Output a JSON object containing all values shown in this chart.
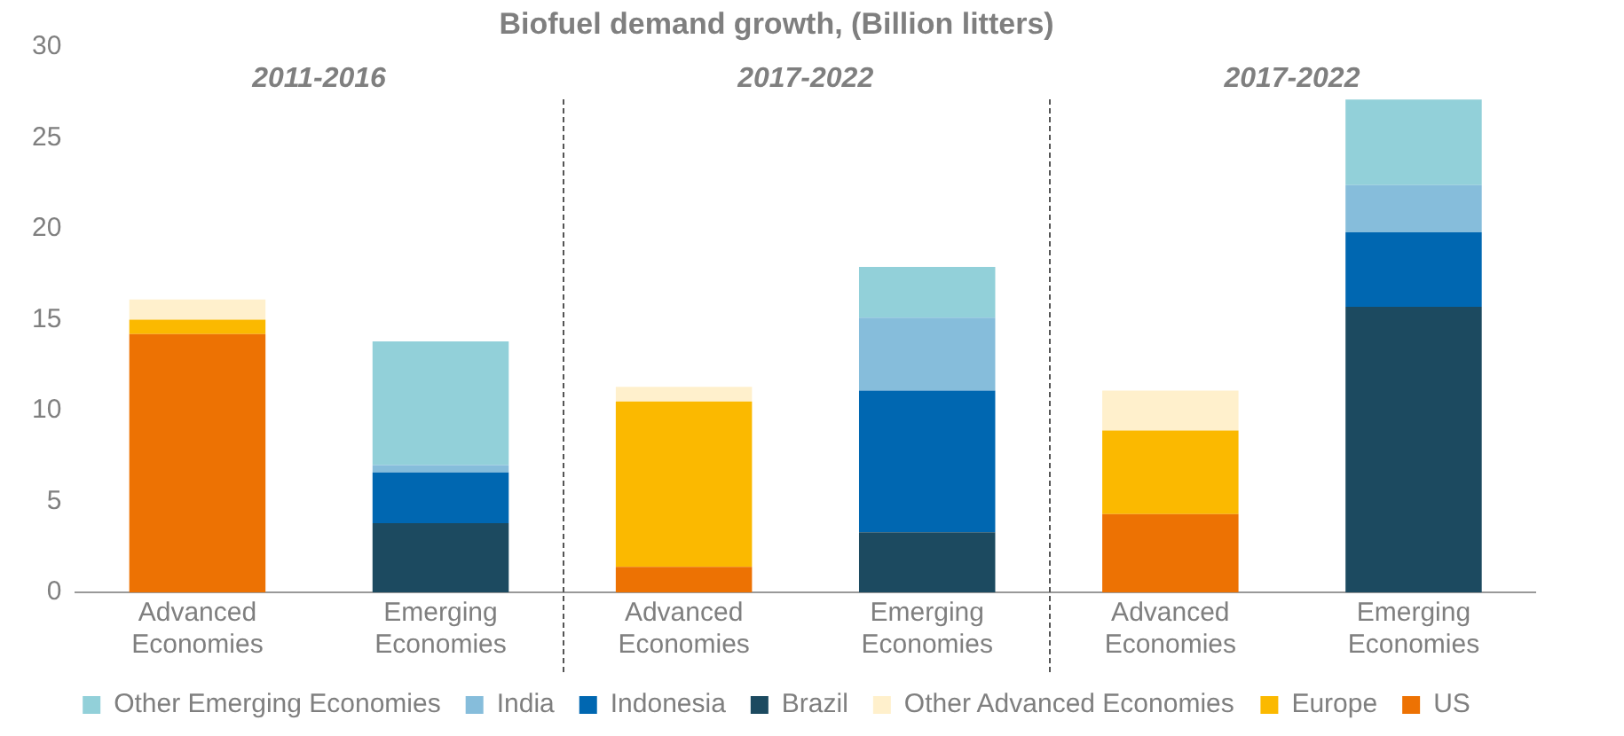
{
  "chart_data": {
    "type": "bar",
    "title": "Biofuel demand growth, (Billion litters)",
    "stacked": true,
    "legend": "bottom",
    "grid": false,
    "categories": [
      "Advanced Economies",
      "Emerging Economies",
      "Advanced Economies",
      "Emerging Economies",
      "Advanced Economies",
      "Emerging Economies"
    ],
    "annotations": [
      "2011-2016",
      "2017-2022",
      "2017-2022"
    ],
    "ylim": [
      0,
      30
    ],
    "yticks": [
      0,
      5,
      10,
      15,
      20,
      25,
      30
    ],
    "series": [
      {
        "name": "US",
        "color": "#ed7203",
        "values": [
          14.2,
          null,
          1.4,
          null,
          4.3,
          null
        ]
      },
      {
        "name": "Europe",
        "color": "#fbb900",
        "values": [
          0.8,
          null,
          9.1,
          null,
          4.6,
          null
        ]
      },
      {
        "name": "Other Advanced Economies",
        "color": "#fff0cc",
        "values": [
          1.1,
          null,
          0.8,
          null,
          2.2,
          null
        ]
      },
      {
        "name": "Brazil",
        "color": "#1c4a60",
        "values": [
          null,
          3.8,
          null,
          3.3,
          null,
          15.7
        ]
      },
      {
        "name": "Indonesia",
        "color": "#0067b1",
        "values": [
          null,
          2.8,
          null,
          7.8,
          null,
          4.1
        ]
      },
      {
        "name": "India",
        "color": "#86bddb",
        "values": [
          null,
          0.4,
          null,
          4.0,
          null,
          2.6
        ]
      },
      {
        "name": "Other Emerging Economies",
        "color": "#92d0d9",
        "values": [
          null,
          6.8,
          null,
          2.8,
          null,
          4.7
        ]
      }
    ]
  }
}
